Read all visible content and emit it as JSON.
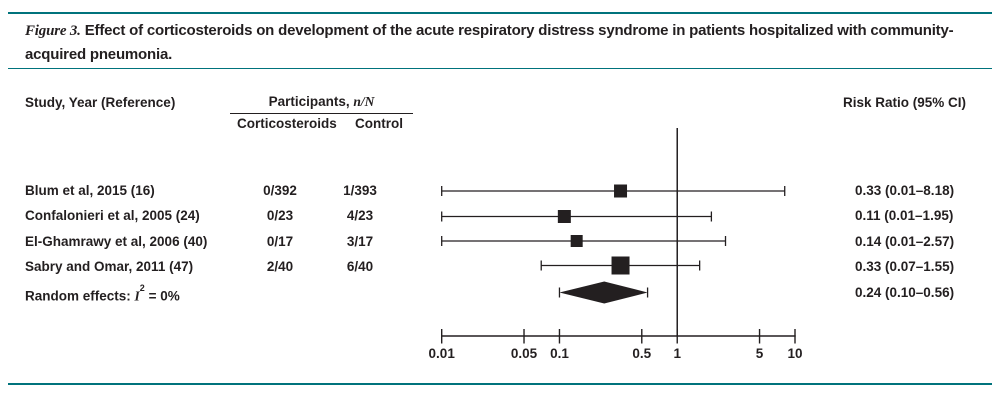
{
  "figure": {
    "label": "Figure 3.",
    "caption": "Effect of corticosteroids on development of the acute respiratory distress syndrome in patients hospitalized with community-acquired pneumonia."
  },
  "table": {
    "study_header": "Study, Year (Reference)",
    "participants_header_prefix": "Participants, ",
    "participants_header_italic": "n/N",
    "subheaders": {
      "corticosteroids": "Corticosteroids",
      "control": "Control"
    },
    "risk_ratio_header": "Risk Ratio (95% CI)",
    "rows": [
      {
        "study": "Blum et al, 2015 (16)",
        "corticosteroids": "0/392",
        "control": "1/393",
        "risk_ratio": "0.33 (0.01–8.18)"
      },
      {
        "study": "Confalonieri et al, 2005 (24)",
        "corticosteroids": "0/23",
        "control": "4/23",
        "risk_ratio": "0.11 (0.01–1.95)"
      },
      {
        "study": "El-Ghamrawy et al, 2006 (40)",
        "corticosteroids": "0/17",
        "control": "3/17",
        "risk_ratio": "0.14 (0.01–2.57)"
      },
      {
        "study": "Sabry and Omar, 2011 (47)",
        "corticosteroids": "2/40",
        "control": "6/40",
        "risk_ratio": "0.33 (0.07–1.55)"
      }
    ],
    "summary": {
      "label_prefix": "Random effects: ",
      "stat_italic": "I",
      "stat_sup": "2",
      "label_suffix": " = 0%",
      "risk_ratio": "0.24 (0.10–0.56)"
    }
  },
  "chart_data": {
    "type": "forest",
    "xscale": "log",
    "xlim": [
      0.01,
      10
    ],
    "xticks": [
      0.01,
      0.05,
      0.1,
      0.5,
      1,
      5,
      10
    ],
    "xtick_labels": [
      "0.01",
      "0.05",
      "0.1",
      "0.5",
      "1",
      "5",
      "10"
    ],
    "ref_line": 1,
    "studies": [
      {
        "name": "Blum et al, 2015 (16)",
        "rr": 0.33,
        "ci": [
          0.01,
          8.18
        ],
        "marker_size": 13
      },
      {
        "name": "Confalonieri et al, 2005 (24)",
        "rr": 0.11,
        "ci": [
          0.01,
          1.95
        ],
        "marker_size": 13
      },
      {
        "name": "El-Ghamrawy et al, 2006 (40)",
        "rr": 0.14,
        "ci": [
          0.01,
          2.57
        ],
        "marker_size": 12
      },
      {
        "name": "Sabry and Omar, 2011 (47)",
        "rr": 0.33,
        "ci": [
          0.07,
          1.55
        ],
        "marker_size": 18
      }
    ],
    "summary": {
      "label": "Random effects: I² = 0%",
      "rr": 0.24,
      "ci": [
        0.1,
        0.56
      ]
    }
  },
  "colors": {
    "rule_teal": "#00737c",
    "ink": "#231f20"
  }
}
